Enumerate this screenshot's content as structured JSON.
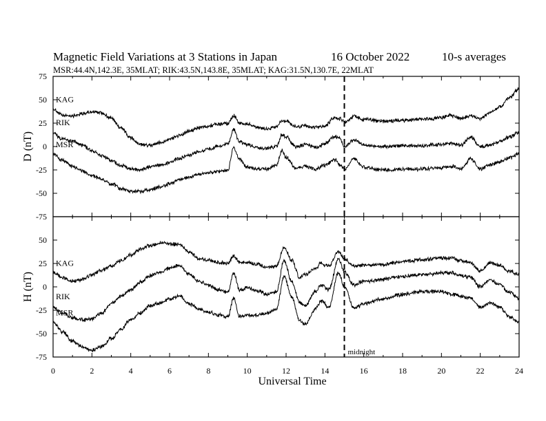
{
  "chart_data": {
    "type": "line",
    "title_left": "Magnetic Field Variations at 3 Stations in Japan",
    "title_date": "16 October 2022",
    "title_avg": "10-s averages",
    "subtitle": "MSR:44.4N,142.3E, 35MLAT;  RIK:43.5N,143.8E, 35MLAT;  KAG:31.5N,130.7E, 22MLAT",
    "xlabel": "Universal Time",
    "xlim": [
      0,
      24
    ],
    "xticks": [
      "0",
      "2",
      "4",
      "6",
      "8",
      "10",
      "12",
      "14",
      "16",
      "18",
      "20",
      "22",
      "24"
    ],
    "annotation": {
      "x": 15,
      "label": "midnight"
    },
    "panels": [
      {
        "ylabel": "D (nT)",
        "ylim": [
          -75,
          75
        ],
        "yticks": [
          "75",
          "50",
          "25",
          "0",
          "-25",
          "-50",
          "-75"
        ],
        "series": [
          {
            "name": "KAG",
            "x": [
              0,
              0.5,
              1,
              1.5,
              2,
              2.5,
              3,
              3.5,
              4,
              4.5,
              5,
              5.5,
              6,
              6.5,
              7,
              7.5,
              8,
              8.5,
              9,
              9.3,
              9.6,
              10,
              10.5,
              11,
              11.5,
              11.8,
              12,
              12.5,
              13,
              13.5,
              14,
              14.5,
              14.8,
              15,
              15.5,
              16,
              17,
              18,
              19,
              20,
              20.5,
              21,
              21.5,
              22,
              22.5,
              23,
              23.5,
              24
            ],
            "values": [
              40,
              33,
              33,
              35,
              37,
              36,
              30,
              20,
              9,
              2,
              1,
              4,
              8,
              12,
              16,
              20,
              22,
              24,
              25,
              33,
              25,
              24,
              20,
              19,
              21,
              28,
              27,
              21,
              22,
              20,
              22,
              31,
              30,
              26,
              32,
              29,
              27,
              28,
              29,
              31,
              33,
              30,
              33,
              30,
              36,
              42,
              52,
              62
            ]
          },
          {
            "name": "RIK",
            "x": [
              0,
              0.5,
              1,
              1.5,
              2,
              2.5,
              3,
              3.5,
              4,
              4.5,
              5,
              5.5,
              6,
              6.5,
              7,
              7.5,
              8,
              8.5,
              9,
              9.3,
              9.6,
              10,
              10.5,
              11,
              11.5,
              11.8,
              12,
              12.5,
              13,
              13.5,
              14,
              14.5,
              14.8,
              15,
              15.5,
              16,
              17,
              18,
              19,
              20,
              20.5,
              21,
              21.5,
              22,
              22.5,
              23,
              23.5,
              24
            ],
            "values": [
              14,
              8,
              6,
              2,
              -5,
              -10,
              -15,
              -20,
              -24,
              -25,
              -22,
              -20,
              -17,
              -13,
              -9,
              -6,
              -3,
              0,
              3,
              18,
              5,
              2,
              -1,
              -2,
              0,
              13,
              10,
              0,
              2,
              -1,
              3,
              11,
              8,
              0,
              7,
              2,
              0,
              1,
              1,
              2,
              4,
              1,
              10,
              0,
              1,
              5,
              10,
              15
            ]
          },
          {
            "name": "MSR",
            "x": [
              0,
              0.5,
              1,
              1.5,
              2,
              2.5,
              3,
              3.5,
              4,
              4.5,
              5,
              5.5,
              6,
              6.5,
              7,
              7.5,
              8,
              8.5,
              9,
              9.3,
              9.6,
              10,
              10.5,
              11,
              11.5,
              11.8,
              12,
              12.5,
              13,
              13.5,
              14,
              14.5,
              14.8,
              15,
              15.5,
              16,
              17,
              18,
              19,
              20,
              20.5,
              21,
              21.5,
              22,
              22.5,
              23,
              23.5,
              24
            ],
            "values": [
              -8,
              -15,
              -21,
              -26,
              -31,
              -35,
              -40,
              -45,
              -48,
              -48,
              -46,
              -43,
              -40,
              -36,
              -33,
              -30,
              -28,
              -27,
              -25,
              -1,
              -14,
              -22,
              -24,
              -24,
              -20,
              -4,
              -12,
              -23,
              -21,
              -24,
              -20,
              -14,
              -20,
              -24,
              -13,
              -22,
              -25,
              -24,
              -24,
              -23,
              -21,
              -24,
              -13,
              -24,
              -20,
              -16,
              -12,
              -8
            ]
          }
        ]
      },
      {
        "ylabel": "H (nT)",
        "ylim": [
          -75,
          75
        ],
        "yticks": [
          "75",
          "50",
          "25",
          "0",
          "-25",
          "-50",
          "-75"
        ],
        "series": [
          {
            "name": "KAG",
            "x": [
              0,
              0.5,
              1,
              1.5,
              2,
              2.5,
              3,
              3.5,
              4,
              4.5,
              5,
              5.5,
              6,
              6.5,
              7,
              7.5,
              8,
              8.5,
              9,
              9.3,
              9.6,
              10,
              10.5,
              11,
              11.5,
              11.9,
              12.3,
              12.7,
              13,
              13.5,
              13.8,
              14.2,
              14.7,
              15,
              15.5,
              16,
              17,
              18,
              19,
              20,
              20.5,
              21,
              21.5,
              22,
              22.5,
              23,
              23.5,
              24
            ],
            "values": [
              15,
              10,
              6,
              8,
              13,
              18,
              22,
              28,
              34,
              40,
              44,
              47,
              46,
              45,
              38,
              30,
              29,
              26,
              25,
              33,
              26,
              26,
              24,
              21,
              22,
              42,
              28,
              10,
              13,
              20,
              25,
              22,
              38,
              30,
              22,
              23,
              24,
              27,
              29,
              31,
              31,
              28,
              26,
              17,
              26,
              23,
              17,
              13
            ]
          },
          {
            "name": "RIK",
            "x": [
              0,
              0.5,
              1,
              1.5,
              2,
              2.5,
              3,
              3.5,
              4,
              4.5,
              5,
              5.5,
              6,
              6.5,
              7,
              7.5,
              8,
              8.5,
              9,
              9.3,
              9.6,
              10,
              10.5,
              11,
              11.5,
              11.9,
              12.3,
              12.7,
              13,
              13.5,
              13.8,
              14.2,
              14.7,
              15,
              15.5,
              16,
              17,
              18,
              19,
              20,
              20.5,
              21,
              21.5,
              22,
              22.5,
              23,
              23.5,
              24
            ],
            "values": [
              -22,
              -28,
              -33,
              -35,
              -34,
              -28,
              -18,
              -10,
              -3,
              5,
              12,
              16,
              20,
              23,
              14,
              6,
              2,
              -3,
              -6,
              15,
              -3,
              -1,
              -4,
              -8,
              -5,
              28,
              5,
              -17,
              -20,
              -5,
              2,
              -3,
              30,
              16,
              2,
              6,
              8,
              11,
              13,
              15,
              15,
              12,
              10,
              0,
              7,
              2,
              -6,
              -13
            ]
          },
          {
            "name": "MSR",
            "x": [
              0,
              0.5,
              1,
              1.5,
              2,
              2.5,
              3,
              3.5,
              4,
              4.5,
              5,
              5.5,
              6,
              6.5,
              7,
              7.5,
              8,
              8.5,
              9,
              9.3,
              9.6,
              10,
              10.5,
              11,
              11.5,
              11.9,
              12.3,
              12.7,
              13,
              13.5,
              13.8,
              14.2,
              14.7,
              15,
              15.5,
              16,
              17,
              18,
              19,
              20,
              20.5,
              21,
              21.5,
              22,
              22.5,
              23,
              23.5,
              24
            ],
            "values": [
              -38,
              -48,
              -58,
              -64,
              -68,
              -64,
              -55,
              -45,
              -35,
              -28,
              -20,
              -17,
              -13,
              -10,
              -18,
              -24,
              -27,
              -30,
              -32,
              -12,
              -32,
              -30,
              -30,
              -28,
              -24,
              11,
              -12,
              -36,
              -40,
              -24,
              -15,
              -22,
              15,
              0,
              -23,
              -18,
              -13,
              -8,
              -5,
              -5,
              -8,
              -10,
              -12,
              -22,
              -17,
              -22,
              -32,
              -38
            ]
          }
        ]
      }
    ]
  }
}
